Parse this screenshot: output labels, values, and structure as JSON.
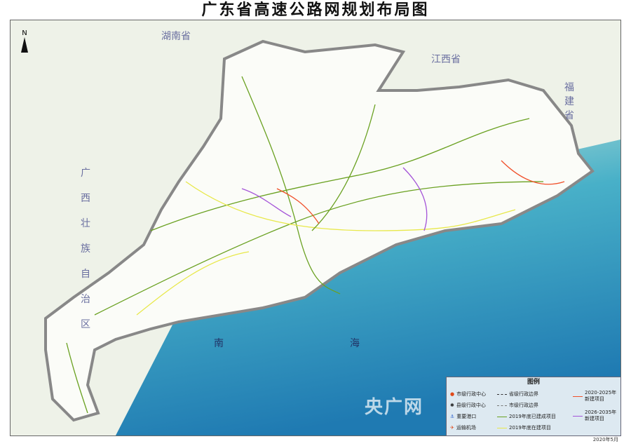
{
  "title": "广东省高速公路网规划布局图",
  "north": "N",
  "regions": {
    "hunan": "湖南省",
    "jiangxi": "江西省",
    "fujian": "福建省",
    "guangxi": "广西壮族自治区",
    "sea": "南海"
  },
  "legend": {
    "title": "图例",
    "items": [
      {
        "label": "市级行政中心",
        "symbol": "city-dot-icon"
      },
      {
        "label": "县级行政中心",
        "symbol": "county-icon"
      },
      {
        "label": "重要港口",
        "symbol": "port-icon"
      },
      {
        "label": "运输机场",
        "symbol": "airport-icon"
      },
      {
        "label": "省级行政边界",
        "color": "#333333"
      },
      {
        "label": "市级行政边界",
        "color": "#777777"
      },
      {
        "label": "2019年底已建成项目",
        "color": "#6aa121"
      },
      {
        "label": "2019年底在建项目",
        "color": "#e8e84a"
      },
      {
        "label": "2020-2025年新建项目",
        "color": "#f0502a"
      },
      {
        "label": "2026-2035年新建项目",
        "color": "#a454d8"
      }
    ]
  },
  "date": "2020年5月",
  "watermark": "央广网"
}
